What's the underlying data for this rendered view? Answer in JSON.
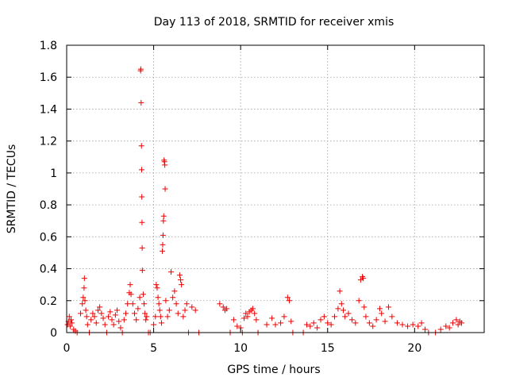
{
  "chart_data": {
    "type": "scatter",
    "title": "Day 113 of 2018, SRMTID for receiver xmis",
    "xlabel": "GPS time / hours",
    "ylabel": "SRMTID / TECUs",
    "xlim": [
      0,
      24
    ],
    "ylim": [
      0,
      1.8
    ],
    "xticks": [
      0,
      5,
      10,
      15,
      20
    ],
    "xtick_labels": [
      "0",
      "5",
      "10",
      "15",
      "20"
    ],
    "yticks": [
      0,
      0.2,
      0.4,
      0.6,
      0.8,
      1,
      1.2,
      1.4,
      1.6,
      1.8
    ],
    "ytick_labels": [
      "0",
      "0.2",
      "0.4",
      "0.6",
      "0.8",
      "1",
      "1.2",
      "1.4",
      "1.6",
      "1.8"
    ],
    "grid": true,
    "marker": "+",
    "color": "#ee0000",
    "series": [
      {
        "name": "SRMTID",
        "points": [
          [
            0.05,
            0.05
          ],
          [
            0.1,
            0.07
          ],
          [
            0.15,
            0.1
          ],
          [
            0.2,
            0.04
          ],
          [
            0.25,
            0.08
          ],
          [
            0.3,
            0.06
          ],
          [
            0.4,
            0.02
          ],
          [
            0.5,
            0.01
          ],
          [
            0.6,
            0.0
          ],
          [
            0.8,
            0.12
          ],
          [
            0.9,
            0.18
          ],
          [
            0.95,
            0.22
          ],
          [
            1.0,
            0.28
          ],
          [
            1.02,
            0.34
          ],
          [
            1.05,
            0.2
          ],
          [
            1.1,
            0.14
          ],
          [
            1.15,
            0.1
          ],
          [
            1.2,
            0.05
          ],
          [
            1.3,
            0.0
          ],
          [
            1.4,
            0.08
          ],
          [
            1.5,
            0.12
          ],
          [
            1.6,
            0.1
          ],
          [
            1.7,
            0.06
          ],
          [
            1.8,
            0.14
          ],
          [
            1.9,
            0.16
          ],
          [
            2.0,
            0.12
          ],
          [
            2.1,
            0.09
          ],
          [
            2.2,
            0.05
          ],
          [
            2.3,
            0.0
          ],
          [
            2.4,
            0.1
          ],
          [
            2.5,
            0.13
          ],
          [
            2.6,
            0.08
          ],
          [
            2.7,
            0.05
          ],
          [
            2.8,
            0.11
          ],
          [
            2.9,
            0.14
          ],
          [
            3.0,
            0.07
          ],
          [
            3.1,
            0.03
          ],
          [
            3.2,
            0.0
          ],
          [
            3.3,
            0.08
          ],
          [
            3.4,
            0.12
          ],
          [
            3.5,
            0.18
          ],
          [
            3.6,
            0.25
          ],
          [
            3.65,
            0.3
          ],
          [
            3.7,
            0.24
          ],
          [
            3.8,
            0.18
          ],
          [
            3.9,
            0.12
          ],
          [
            4.0,
            0.08
          ],
          [
            4.1,
            0.15
          ],
          [
            4.2,
            0.22
          ],
          [
            4.25,
            1.64
          ],
          [
            4.26,
            1.65
          ],
          [
            4.28,
            1.44
          ],
          [
            4.3,
            1.17
          ],
          [
            4.31,
            1.02
          ],
          [
            4.32,
            0.85
          ],
          [
            4.33,
            0.69
          ],
          [
            4.34,
            0.53
          ],
          [
            4.35,
            0.39
          ],
          [
            4.4,
            0.24
          ],
          [
            4.45,
            0.18
          ],
          [
            4.5,
            0.12
          ],
          [
            4.55,
            0.08
          ],
          [
            4.6,
            0.1
          ],
          [
            4.7,
            0.0
          ],
          [
            4.8,
            0.0
          ],
          [
            5.0,
            0.05
          ],
          [
            5.1,
            0.1
          ],
          [
            5.15,
            0.3
          ],
          [
            5.2,
            0.28
          ],
          [
            5.25,
            0.22
          ],
          [
            5.3,
            0.18
          ],
          [
            5.35,
            0.14
          ],
          [
            5.4,
            0.1
          ],
          [
            5.45,
            0.06
          ],
          [
            5.5,
            0.51
          ],
          [
            5.52,
            0.55
          ],
          [
            5.54,
            0.61
          ],
          [
            5.56,
            0.7
          ],
          [
            5.58,
            0.73
          ],
          [
            5.6,
            1.08
          ],
          [
            5.62,
            1.07
          ],
          [
            5.64,
            1.05
          ],
          [
            5.66,
            0.9
          ],
          [
            5.7,
            0.2
          ],
          [
            5.8,
            0.1
          ],
          [
            5.9,
            0.14
          ],
          [
            6.0,
            0.38
          ],
          [
            6.1,
            0.22
          ],
          [
            6.2,
            0.26
          ],
          [
            6.3,
            0.18
          ],
          [
            6.4,
            0.12
          ],
          [
            6.5,
            0.36
          ],
          [
            6.55,
            0.33
          ],
          [
            6.6,
            0.3
          ],
          [
            6.7,
            0.1
          ],
          [
            6.8,
            0.14
          ],
          [
            6.9,
            0.18
          ],
          [
            7.0,
            0.0
          ],
          [
            7.2,
            0.16
          ],
          [
            7.4,
            0.14
          ],
          [
            7.6,
            0.0
          ],
          [
            8.8,
            0.18
          ],
          [
            9.0,
            0.16
          ],
          [
            9.1,
            0.14
          ],
          [
            9.2,
            0.15
          ],
          [
            9.4,
            0.0
          ],
          [
            9.6,
            0.08
          ],
          [
            9.8,
            0.04
          ],
          [
            10.0,
            0.03
          ],
          [
            10.1,
            0.0
          ],
          [
            10.2,
            0.09
          ],
          [
            10.3,
            0.12
          ],
          [
            10.4,
            0.1
          ],
          [
            10.5,
            0.13
          ],
          [
            10.6,
            0.14
          ],
          [
            10.7,
            0.15
          ],
          [
            10.8,
            0.12
          ],
          [
            10.9,
            0.08
          ],
          [
            11.0,
            0.0
          ],
          [
            11.5,
            0.05
          ],
          [
            11.8,
            0.09
          ],
          [
            12.0,
            0.05
          ],
          [
            12.3,
            0.06
          ],
          [
            12.5,
            0.1
          ],
          [
            12.7,
            0.22
          ],
          [
            12.8,
            0.2
          ],
          [
            12.9,
            0.07
          ],
          [
            13.0,
            0.0
          ],
          [
            13.6,
            0.0
          ],
          [
            13.8,
            0.05
          ],
          [
            14.0,
            0.04
          ],
          [
            14.2,
            0.06
          ],
          [
            14.4,
            0.03
          ],
          [
            14.6,
            0.08
          ],
          [
            14.8,
            0.1
          ],
          [
            15.0,
            0.06
          ],
          [
            15.2,
            0.05
          ],
          [
            15.4,
            0.1
          ],
          [
            15.6,
            0.15
          ],
          [
            15.7,
            0.26
          ],
          [
            15.8,
            0.18
          ],
          [
            15.9,
            0.14
          ],
          [
            16.0,
            0.1
          ],
          [
            16.2,
            0.12
          ],
          [
            16.4,
            0.08
          ],
          [
            16.6,
            0.06
          ],
          [
            16.8,
            0.2
          ],
          [
            16.9,
            0.33
          ],
          [
            17.0,
            0.35
          ],
          [
            17.05,
            0.34
          ],
          [
            17.1,
            0.16
          ],
          [
            17.2,
            0.1
          ],
          [
            17.4,
            0.06
          ],
          [
            17.6,
            0.04
          ],
          [
            17.8,
            0.08
          ],
          [
            18.0,
            0.15
          ],
          [
            18.1,
            0.12
          ],
          [
            18.3,
            0.07
          ],
          [
            18.5,
            0.16
          ],
          [
            18.7,
            0.1
          ],
          [
            19.0,
            0.06
          ],
          [
            19.3,
            0.05
          ],
          [
            19.6,
            0.04
          ],
          [
            19.9,
            0.05
          ],
          [
            20.2,
            0.04
          ],
          [
            20.4,
            0.06
          ],
          [
            20.6,
            0.02
          ],
          [
            20.8,
            0.0
          ],
          [
            21.2,
            0.0
          ],
          [
            21.5,
            0.02
          ],
          [
            21.8,
            0.04
          ],
          [
            22.0,
            0.03
          ],
          [
            22.2,
            0.06
          ],
          [
            22.4,
            0.08
          ],
          [
            22.5,
            0.05
          ],
          [
            22.6,
            0.07
          ],
          [
            22.7,
            0.06
          ]
        ]
      }
    ]
  }
}
